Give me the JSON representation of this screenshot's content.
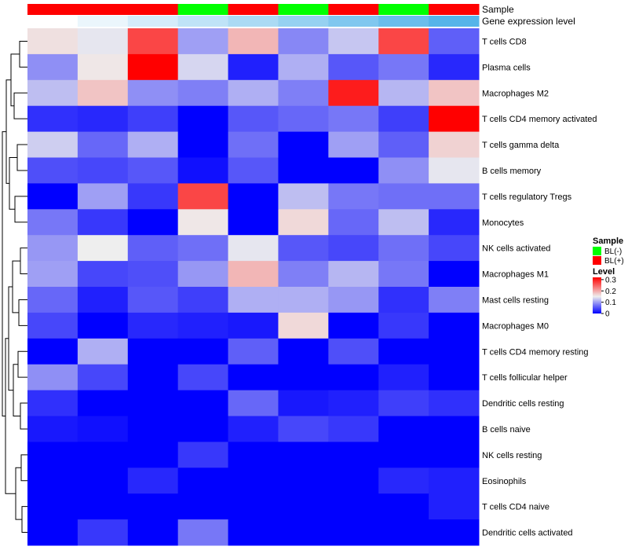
{
  "chart_data": {
    "type": "heatmap",
    "title": "",
    "annotation_tracks": [
      {
        "name": "Sample",
        "values": [
          "BL(+)",
          "BL(+)",
          "BL(+)",
          "BL(-)",
          "BL(+)",
          "BL(-)",
          "BL(+)",
          "BL(-)",
          "BL(+)"
        ]
      },
      {
        "name": "Gene expression level",
        "values": [
          0.0,
          0.12,
          0.25,
          0.38,
          0.5,
          0.62,
          0.75,
          0.88,
          1.0
        ],
        "color_low": "#ffffff",
        "color_high": "#56b4e9"
      }
    ],
    "row_labels": [
      "T cells CD8",
      "Plasma cells",
      "Macrophages M2",
      "T cells CD4 memory activated",
      "T cells gamma delta",
      "B cells memory",
      "T cells regulatory  Tregs",
      "Monocytes",
      "NK cells activated",
      "Macrophages M1",
      "Mast cells resting",
      "Macrophages M0",
      "T cells CD4 memory resting",
      "T cells follicular helper",
      "Dendritic cells resting",
      "B cells naive",
      "NK cells resting",
      "Eosinophils",
      "T cells CD4 naive",
      "Dendritic cells activated"
    ],
    "values": [
      [
        0.16,
        0.145,
        0.27,
        0.1,
        0.19,
        0.085,
        0.125,
        0.27,
        0.06
      ],
      [
        0.09,
        0.155,
        0.32,
        0.135,
        0.02,
        0.11,
        0.055,
        0.075,
        0.025
      ],
      [
        0.12,
        0.18,
        0.09,
        0.08,
        0.11,
        0.08,
        0.3,
        0.115,
        0.18
      ],
      [
        0.03,
        0.025,
        0.04,
        0.0,
        0.055,
        0.065,
        0.075,
        0.04,
        0.32
      ],
      [
        0.13,
        0.065,
        0.11,
        0.0,
        0.07,
        0.0,
        0.1,
        0.06,
        0.17
      ],
      [
        0.05,
        0.045,
        0.055,
        0.01,
        0.055,
        0.0,
        0.0,
        0.09,
        0.145
      ],
      [
        0.0,
        0.1,
        0.035,
        0.27,
        0.0,
        0.12,
        0.075,
        0.07,
        0.07
      ],
      [
        0.075,
        0.035,
        0.0,
        0.155,
        0.0,
        0.165,
        0.065,
        0.12,
        0.025
      ],
      [
        0.095,
        0.15,
        0.06,
        0.07,
        0.145,
        0.055,
        0.045,
        0.07,
        0.045
      ],
      [
        0.1,
        0.045,
        0.05,
        0.095,
        0.19,
        0.08,
        0.115,
        0.075,
        0.0
      ],
      [
        0.065,
        0.02,
        0.055,
        0.04,
        0.11,
        0.11,
        0.095,
        0.03,
        0.08
      ],
      [
        0.045,
        0.0,
        0.025,
        0.02,
        0.015,
        0.165,
        0.0,
        0.035,
        0.0
      ],
      [
        0.0,
        0.11,
        0.0,
        0.0,
        0.06,
        0.0,
        0.05,
        0.0,
        0.0
      ],
      [
        0.09,
        0.045,
        0.0,
        0.045,
        0.0,
        0.0,
        0.0,
        0.02,
        0.0
      ],
      [
        0.03,
        0.0,
        0.0,
        0.0,
        0.065,
        0.015,
        0.02,
        0.04,
        0.03
      ],
      [
        0.015,
        0.01,
        0.0,
        0.0,
        0.02,
        0.045,
        0.035,
        0.0,
        0.0
      ],
      [
        0.0,
        0.0,
        0.0,
        0.035,
        0.0,
        0.0,
        0.0,
        0.0,
        0.0
      ],
      [
        0.0,
        0.0,
        0.025,
        0.0,
        0.0,
        0.0,
        0.0,
        0.025,
        0.02
      ],
      [
        0.0,
        0.0,
        0.0,
        0.0,
        0.0,
        0.0,
        0.0,
        0.0,
        0.02
      ],
      [
        0.0,
        0.035,
        0.0,
        0.075,
        0.0,
        0.0,
        0.0,
        0.0,
        0.0
      ]
    ],
    "color_scale": {
      "min": 0,
      "mid": 0.15,
      "max": 0.32,
      "low": "#0000ff",
      "mid_color": "#eeeeee",
      "high": "#ff0000"
    },
    "legend": {
      "placement": "right",
      "sample_title": "Sample",
      "sample_entries": [
        {
          "label": "BL(-)",
          "color": "#00ff00"
        },
        {
          "label": "BL(+)",
          "color": "#ff0000"
        }
      ],
      "level_title": "Level",
      "level_ticks": [
        {
          "value": 0.3,
          "label": "0.3"
        },
        {
          "value": 0.2,
          "label": "0.2"
        },
        {
          "value": 0.1,
          "label": "0.1"
        },
        {
          "value": 0,
          "label": "0"
        }
      ]
    },
    "row_dendrogram": true
  }
}
